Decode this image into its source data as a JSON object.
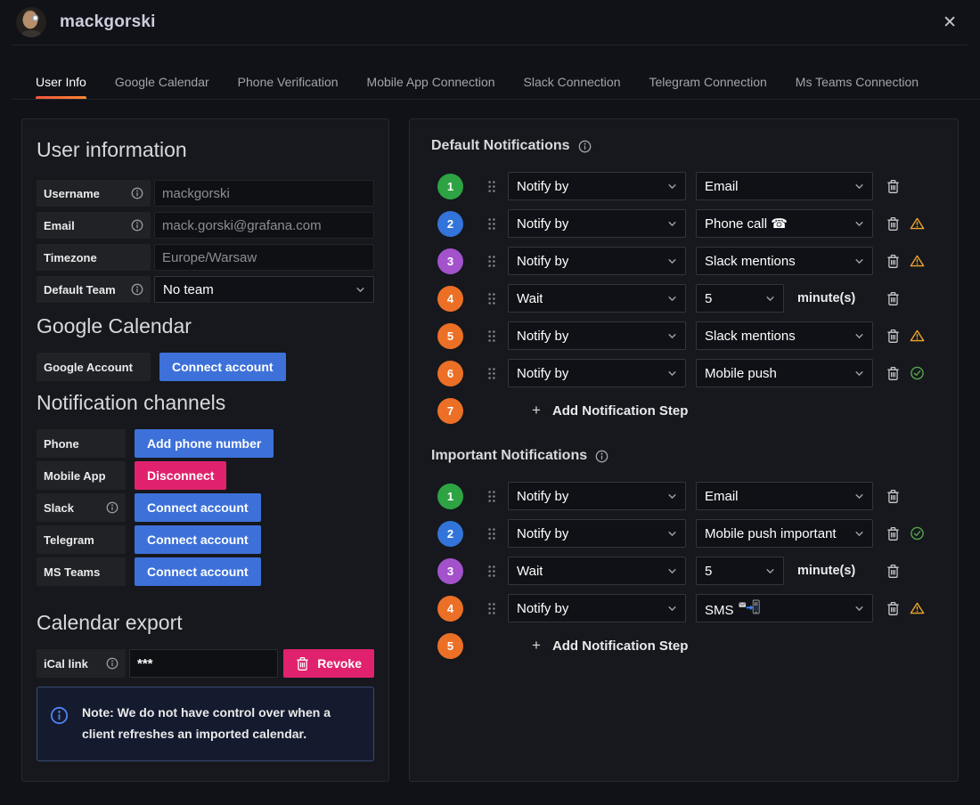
{
  "header": {
    "title": "mackgorski",
    "close": "✕"
  },
  "tabs": {
    "items": [
      {
        "label": "User Info",
        "active": true
      },
      {
        "label": "Google Calendar",
        "active": false
      },
      {
        "label": "Phone Verification",
        "active": false
      },
      {
        "label": "Mobile App Connection",
        "active": false
      },
      {
        "label": "Slack Connection",
        "active": false
      },
      {
        "label": "Telegram Connection",
        "active": false
      },
      {
        "label": "Ms Teams Connection",
        "active": false
      }
    ]
  },
  "left": {
    "user_info": {
      "heading": "User information",
      "fields": [
        {
          "label": "Username",
          "info": true,
          "value": "mackgorski",
          "type": "input"
        },
        {
          "label": "Email",
          "info": true,
          "value": "mack.gorski@grafana.com",
          "type": "input"
        },
        {
          "label": "Timezone",
          "info": false,
          "value": "Europe/Warsaw",
          "type": "input"
        },
        {
          "label": "Default Team",
          "info": true,
          "value": "No team",
          "type": "select"
        }
      ]
    },
    "google_calendar": {
      "heading": "Google Calendar",
      "row": {
        "label": "Google Account",
        "info": false,
        "button": "Connect account",
        "style": "primary"
      }
    },
    "channels": {
      "heading": "Notification channels",
      "rows": [
        {
          "label": "Phone",
          "info": false,
          "button": "Add phone number",
          "style": "primary"
        },
        {
          "label": "Mobile App",
          "info": false,
          "button": "Disconnect",
          "style": "destructive"
        },
        {
          "label": "Slack",
          "info": true,
          "button": "Connect account",
          "style": "primary"
        },
        {
          "label": "Telegram",
          "info": false,
          "button": "Connect account",
          "style": "primary"
        },
        {
          "label": "MS Teams",
          "info": false,
          "button": "Connect account",
          "style": "primary"
        }
      ]
    },
    "calendar_export": {
      "heading": "Calendar export",
      "ical_label": "iCal link",
      "ical_value": "***",
      "revoke_button": "Revoke",
      "note": "Note: We do not have control over when a client refreshes an imported calendar."
    }
  },
  "right": {
    "default_section": {
      "heading": "Default Notifications",
      "steps": [
        {
          "num": "1",
          "color": "#2da343",
          "type": "Notify by",
          "value": "Email",
          "status": null
        },
        {
          "num": "2",
          "color": "#3274d9",
          "type": "Notify by",
          "value": "Phone call ☎",
          "status": "warning"
        },
        {
          "num": "3",
          "color": "#a352cc",
          "type": "Notify by",
          "value": "Slack mentions",
          "status": "warning"
        },
        {
          "num": "4",
          "color": "#ec6f26",
          "type": "Wait",
          "value": "5",
          "suffix": "minute(s)",
          "narrow": true,
          "status": null
        },
        {
          "num": "5",
          "color": "#ec6f26",
          "type": "Notify by",
          "value": "Slack mentions",
          "status": "warning"
        },
        {
          "num": "6",
          "color": "#ec6f26",
          "type": "Notify by",
          "value": "Mobile push",
          "status": "ok"
        }
      ],
      "add_step": {
        "num": "7",
        "color": "#ec6f26",
        "label": "Add Notification Step",
        "plus": "+"
      }
    },
    "important_section": {
      "heading": "Important Notifications",
      "steps": [
        {
          "num": "1",
          "color": "#2da343",
          "type": "Notify by",
          "value": "Email",
          "status": null
        },
        {
          "num": "2",
          "color": "#3274d9",
          "type": "Notify by",
          "value": "Mobile push important",
          "status": "ok"
        },
        {
          "num": "3",
          "color": "#a352cc",
          "type": "Wait",
          "value": "5",
          "suffix": "minute(s)",
          "narrow": true,
          "status": null
        },
        {
          "num": "4",
          "color": "#ec6f26",
          "type": "Notify by",
          "value": "SMS",
          "value_icon": "mobile-phone-with-arrow-icon",
          "status": "warning"
        }
      ],
      "add_step": {
        "num": "5",
        "color": "#ec6f26",
        "label": "Add Notification Step",
        "plus": "+"
      }
    }
  },
  "icons": {
    "close": "✕",
    "plus": "+",
    "chevron_down": "⌄",
    "drag_handle": "⠿",
    "info": "ⓘ",
    "trash": "trash-can",
    "warning": "warning-triangle",
    "ok": "check-circle"
  },
  "colors": {
    "accent_blue": "#3d71d9",
    "destructive_pink": "#e0226e",
    "tab_underline_from": "#f2543c",
    "tab_underline_to": "#ff8833",
    "warning_orange": "#eda42c",
    "success_green": "#56a64b",
    "note_info_blue": "#4d82f5",
    "badge_green": "#2da343",
    "badge_blue": "#3274d9",
    "badge_purple": "#a352cc",
    "badge_orange": "#ec6f26"
  }
}
